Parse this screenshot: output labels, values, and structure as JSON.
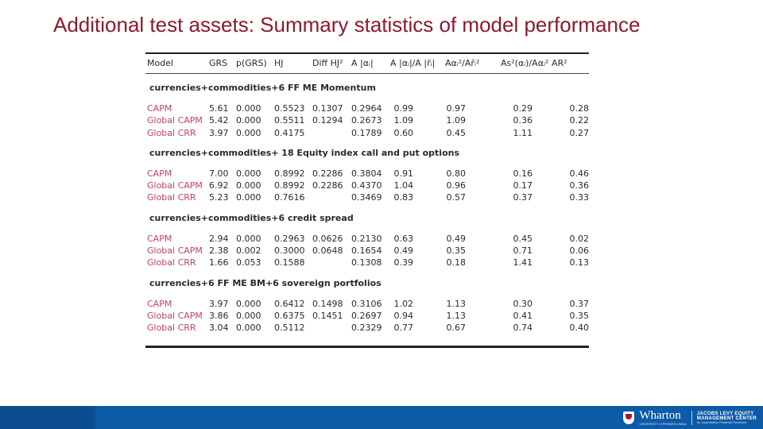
{
  "slide": {
    "title": "Additional test assets: Summary statistics of model performance"
  },
  "table": {
    "headers": [
      "Model",
      "GRS",
      "p(GRS)",
      "HJ",
      "Diff HJ²",
      "A |αᵢ|",
      "A |αᵢ|/A |r̄ᵢ|",
      "Aαᵢ²/Ar̄ᵢ²",
      "As²(αᵢ)/Aαᵢ²",
      "AR²"
    ],
    "groups": [
      {
        "title": "currencies+commodities+6 FF ME Momentum",
        "rows": [
          {
            "model": "CAPM",
            "grs": "5.61",
            "p": "0.000",
            "hj": "0.5523",
            "diff": "0.1307",
            "a": "0.2964",
            "ar": "0.99",
            "a2": "0.97",
            "as2": "0.29",
            "r2": "0.28"
          },
          {
            "model": "Global CAPM",
            "grs": "5.42",
            "p": "0.000",
            "hj": "0.5511",
            "diff": "0.1294",
            "a": "0.2673",
            "ar": "1.09",
            "a2": "1.09",
            "as2": "0.36",
            "r2": "0.22"
          },
          {
            "model": "Global CRR",
            "grs": "3.97",
            "p": "0.000",
            "hj": "0.4175",
            "diff": "",
            "a": "0.1789",
            "ar": "0.60",
            "a2": "0.45",
            "as2": "1.11",
            "r2": "0.27"
          }
        ]
      },
      {
        "title": "currencies+commodities+ 18 Equity index call and put options",
        "rows": [
          {
            "model": "CAPM",
            "grs": "7.00",
            "p": "0.000",
            "hj": "0.8992",
            "diff": "0.2286",
            "a": "0.3804",
            "ar": "0.91",
            "a2": "0.80",
            "as2": "0.16",
            "r2": "0.46"
          },
          {
            "model": "Global CAPM",
            "grs": "6.92",
            "p": "0.000",
            "hj": "0.8992",
            "diff": "0.2286",
            "a": "0.4370",
            "ar": "1.04",
            "a2": "0.96",
            "as2": "0.17",
            "r2": "0.36"
          },
          {
            "model": "Global CRR",
            "grs": "5.23",
            "p": "0.000",
            "hj": "0.7616",
            "diff": "",
            "a": "0.3469",
            "ar": "0.83",
            "a2": "0.57",
            "as2": "0.37",
            "r2": "0.33"
          }
        ]
      },
      {
        "title": "currencies+commodities+6 credit spread",
        "rows": [
          {
            "model": "CAPM",
            "grs": "2.94",
            "p": "0.000",
            "hj": "0.2963",
            "diff": "0.0626",
            "a": "0.2130",
            "ar": "0.63",
            "a2": "0.49",
            "as2": "0.45",
            "r2": "0.02"
          },
          {
            "model": "Global CAPM",
            "grs": "2.38",
            "p": "0.002",
            "hj": "0.3000",
            "diff": "0.0648",
            "a": "0.1654",
            "ar": "0.49",
            "a2": "0.35",
            "as2": "0.71",
            "r2": "0.06"
          },
          {
            "model": "Global CRR",
            "grs": "1.66",
            "p": "0.053",
            "hj": "0.1588",
            "diff": "",
            "a": "0.1308",
            "ar": "0.39",
            "a2": "0.18",
            "as2": "1.41",
            "r2": "0.13"
          }
        ]
      },
      {
        "title": "currencies+6 FF ME BM+6 sovereign portfolios",
        "rows": [
          {
            "model": "CAPM",
            "grs": "3.97",
            "p": "0.000",
            "hj": "0.6412",
            "diff": "0.1498",
            "a": "0.3106",
            "ar": "1.02",
            "a2": "1.13",
            "as2": "0.30",
            "r2": "0.37"
          },
          {
            "model": "Global CAPM",
            "grs": "3.86",
            "p": "0.000",
            "hj": "0.6375",
            "diff": "0.1451",
            "a": "0.2697",
            "ar": "0.94",
            "a2": "1.13",
            "as2": "0.41",
            "r2": "0.35"
          },
          {
            "model": "Global CRR",
            "grs": "3.04",
            "p": "0.000",
            "hj": "0.5112",
            "diff": "",
            "a": "0.2329",
            "ar": "0.77",
            "a2": "0.67",
            "as2": "0.74",
            "r2": "0.40"
          }
        ]
      }
    ]
  },
  "footer": {
    "logo_name": "Wharton",
    "logo_sub": "UNIVERSITY of PENNSYLVANIA",
    "center_line1": "JACOBS LEVY EQUITY",
    "center_line2": "MANAGEMENT CENTER",
    "center_line3": "for Quantitative Financial Research",
    "bar_color": "#0d5aa7",
    "title_color": "#8b1a2e",
    "model_color": "#c0426b"
  }
}
